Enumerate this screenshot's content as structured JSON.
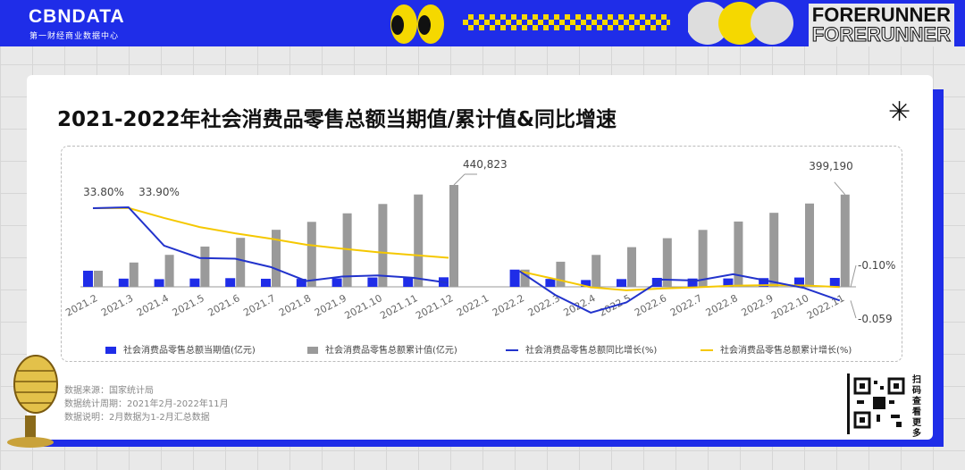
{
  "header": {
    "logo_text": "CBNDATA",
    "logo_sub": "第一财经商业数据中心",
    "brand_1": "FORERUNNER",
    "brand_2": "FORERUNNER"
  },
  "title": "2021-2022年社会消费品零售总额当期值/累计值&同比增速",
  "chart_data": {
    "type": "bar",
    "categories": [
      "2021.2",
      "2021.3",
      "2021.4",
      "2021.5",
      "2021.6",
      "2021.7",
      "2021.8",
      "2021.9",
      "2021.10",
      "2021.11",
      "2021.12",
      "2022.1",
      "2022.2",
      "2022.3",
      "2022.4",
      "2022.5",
      "2022.6",
      "2022.7",
      "2022.8",
      "2022.9",
      "2022.10",
      "2022.11"
    ],
    "series": [
      {
        "name": "社会消费品零售总额当期值(亿元)",
        "type": "bar",
        "color": "#1f2de8",
        "values": [
          69737,
          35484,
          33153,
          35945,
          37586,
          34925,
          34395,
          36833,
          40454,
          41043,
          41269,
          null,
          74426,
          34233,
          29483,
          33547,
          38742,
          35870,
          36258,
          37745,
          40271,
          38615
        ]
      },
      {
        "name": "社会消费品零售总额累计值(亿元)",
        "type": "bar",
        "color": "#9a9a9a",
        "values": [
          69737,
          105221,
          138374,
          174319,
          211904,
          246829,
          281224,
          318057,
          358511,
          399554,
          440823,
          null,
          74426,
          108659,
          138142,
          171689,
          210432,
          246302,
          282560,
          320305,
          360575,
          399190
        ]
      },
      {
        "name": "社会消费品零售总额同比增长(%)",
        "type": "line",
        "color": "#2233cc",
        "values": [
          33.8,
          34.2,
          17.7,
          12.4,
          12.1,
          8.5,
          2.5,
          4.4,
          4.9,
          3.9,
          1.7,
          null,
          6.7,
          -3.5,
          -11.1,
          -6.7,
          3.1,
          2.7,
          5.4,
          2.5,
          -0.5,
          -5.9
        ]
      },
      {
        "name": "社会消费品零售总额累计增长(%)",
        "type": "line",
        "color": "#f5c800",
        "values": [
          33.8,
          33.9,
          29.6,
          25.7,
          23.0,
          20.7,
          18.1,
          16.4,
          14.9,
          13.7,
          12.5,
          null,
          6.7,
          3.3,
          -0.2,
          -1.5,
          -0.7,
          -0.2,
          0.5,
          0.7,
          0.6,
          -0.1
        ]
      }
    ],
    "data_labels": {
      "first_yoy": "33.80%",
      "second_yoy": "33.90%",
      "peak_2021": "440,823",
      "peak_2022": "399,190",
      "right_upper": "-0.10%",
      "right_lower": "-0.059"
    }
  },
  "notes": {
    "source": "数据来源：国家统计局",
    "period": "数据统计周期：2021年2月-2022年11月",
    "remark": "数据说明：2月数据为1-2月汇总数据"
  },
  "qr_text": "扫码查看更多"
}
